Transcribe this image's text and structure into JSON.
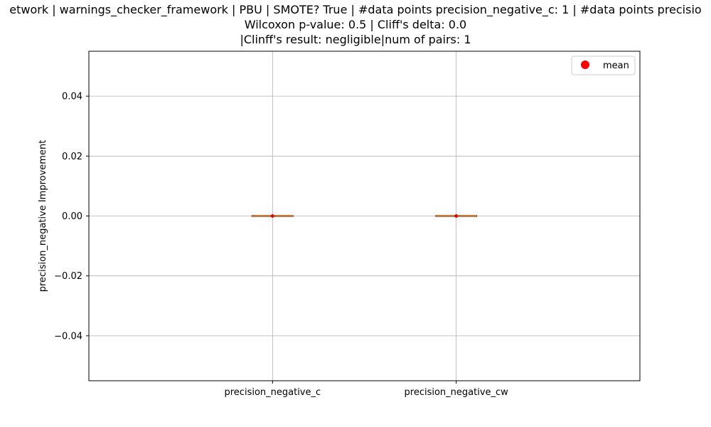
{
  "chart_data": {
    "type": "box",
    "title_lines": [
      "etwork | warnings_checker_framework | PBU | SMOTE? True | #data points precision_negative_c: 1 | #data points precisio",
      "Wilcoxon p-value: 0.5 | Cliff's delta: 0.0",
      "|Clinff's result: negligible|num of pairs: 1"
    ],
    "xlabel": "",
    "ylabel": "precision_negative Improvement",
    "categories": [
      "precision_negative_c",
      "precision_negative_cw"
    ],
    "values": [
      0.0,
      0.0
    ],
    "means": [
      0.0,
      0.0
    ],
    "ylim": [
      -0.055,
      0.055
    ],
    "yticks": [
      -0.04,
      -0.02,
      0.0,
      0.02,
      0.04
    ],
    "ytick_labels": [
      "−0.04",
      "−0.02",
      "0.00",
      "0.02",
      "0.04"
    ],
    "grid": true,
    "legend": {
      "position": "top-right",
      "entries": [
        {
          "label": "mean",
          "marker": "circle",
          "color": "#ff0000"
        }
      ]
    },
    "colors": {
      "median": "#ff7f0e",
      "mean": "#ff0000",
      "grid": "#b0b0b0",
      "box": "#000000"
    }
  }
}
